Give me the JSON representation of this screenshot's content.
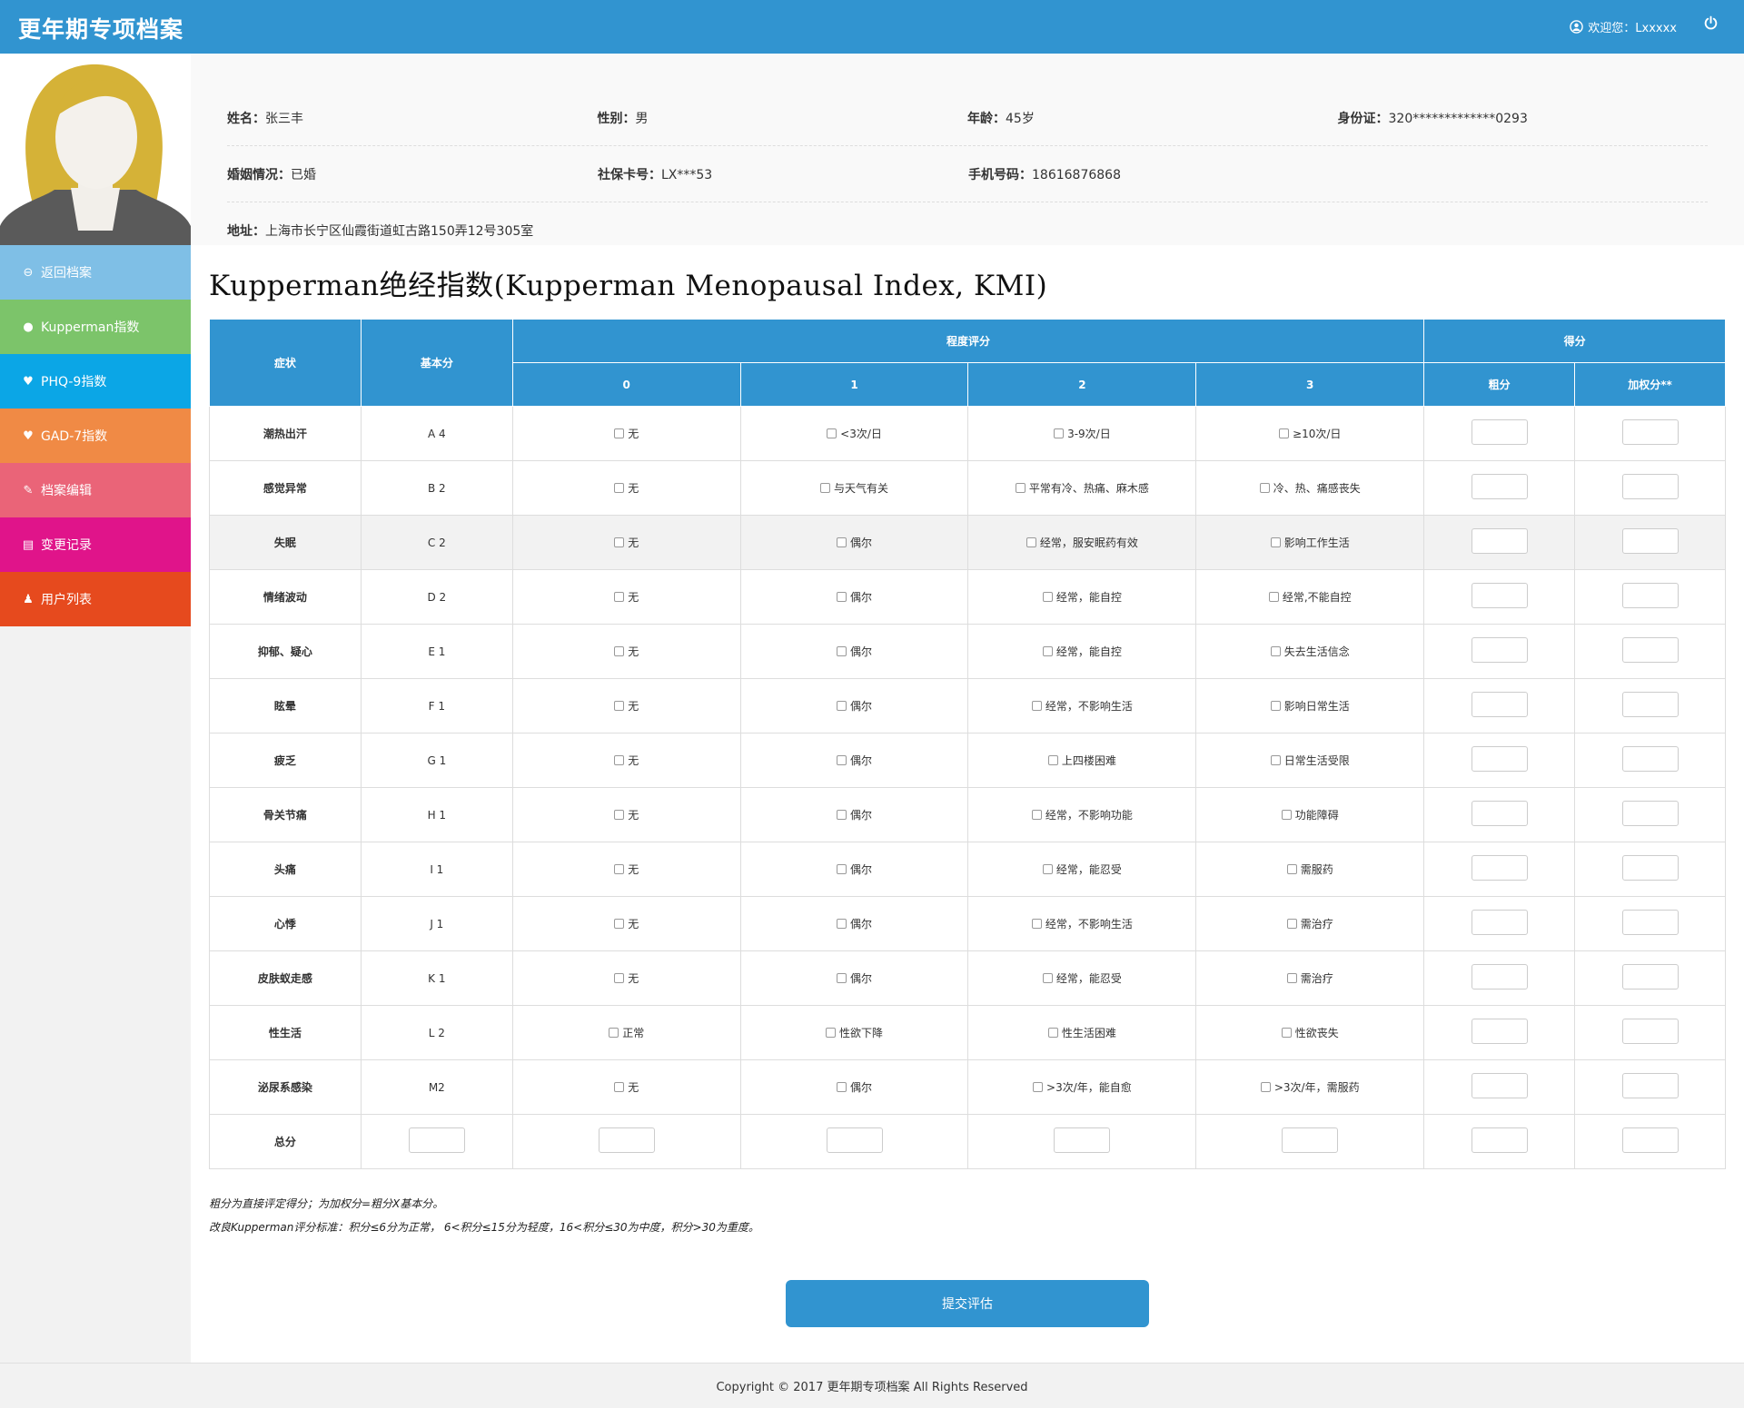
{
  "header": {
    "app_title": "更年期专项档案",
    "welcome": "欢迎您：Lxxxxx",
    "user_icon": "user-circle-icon",
    "power_icon": "power-icon"
  },
  "sidebar": {
    "items": [
      {
        "label": "返回档案",
        "icon": "arrow-circle-left-icon",
        "color": "#7fbfe6"
      },
      {
        "label": "Kupperman指数",
        "icon": "drop-icon",
        "color": "#7cc46a"
      },
      {
        "label": "PHQ-9指数",
        "icon": "heartbeat-icon",
        "color": "#0ba6e6"
      },
      {
        "label": "GAD-7指数",
        "icon": "heart-icon",
        "color": "#f08a45"
      },
      {
        "label": "档案编辑",
        "icon": "edit-icon",
        "color": "#ea6478"
      },
      {
        "label": "变更记录",
        "icon": "calendar-icon",
        "color": "#e0148a"
      },
      {
        "label": "用户列表",
        "icon": "users-icon",
        "color": "#e64a1e"
      }
    ]
  },
  "profile": {
    "name_label": "姓名：",
    "name": "张三丰",
    "gender_label": "性别：",
    "gender": "男",
    "age_label": "年龄：",
    "age": "45岁",
    "id_label": "身份证：",
    "id": "320*************0293",
    "marital_label": "婚姻情况：",
    "marital": "已婚",
    "social_label": "社保卡号：",
    "social": "LX***53",
    "phone_label": "手机号码：",
    "phone": "18616876868",
    "address_label": "地址：",
    "address": "上海市长宁区仙霞街道虹古路150弄12号305室"
  },
  "kmi": {
    "title": "Kupperman绝经指数(Kupperman Menopausal Index, KMI)",
    "headers": {
      "symptom": "症状",
      "base": "基本分",
      "degree": "程度评分",
      "score": "得分",
      "d0": "0",
      "d1": "1",
      "d2": "2",
      "d3": "3",
      "raw": "粗分",
      "weighted": "加权分**"
    },
    "rows": [
      {
        "symptom": "潮热出汗",
        "base": "A 4",
        "o0": "无",
        "o1": "<3次/日",
        "o2": "3-9次/日",
        "o3": "≥10次/日"
      },
      {
        "symptom": "感觉异常",
        "base": "B 2",
        "o0": "无",
        "o1": "与天气有关",
        "o2": "平常有冷、热痛、麻木感",
        "o3": "冷、热、痛感丧失"
      },
      {
        "symptom": "失眠",
        "base": "C 2",
        "o0": "无",
        "o1": "偶尔",
        "o2": "经常，服安眠药有效",
        "o3": "影响工作生活"
      },
      {
        "symptom": "情绪波动",
        "base": "D 2",
        "o0": "无",
        "o1": "偶尔",
        "o2": "经常，能自控",
        "o3": "经常,不能自控"
      },
      {
        "symptom": "抑郁、疑心",
        "base": "E 1",
        "o0": "无",
        "o1": "偶尔",
        "o2": "经常，能自控",
        "o3": "失去生活信念"
      },
      {
        "symptom": "眩晕",
        "base": "F 1",
        "o0": "无",
        "o1": "偶尔",
        "o2": "经常，不影响生活",
        "o3": "影响日常生活"
      },
      {
        "symptom": "疲乏",
        "base": "G 1",
        "o0": "无",
        "o1": "偶尔",
        "o2": "上四楼困难",
        "o3": "日常生活受限"
      },
      {
        "symptom": "骨关节痛",
        "base": "H 1",
        "o0": "无",
        "o1": "偶尔",
        "o2": "经常，不影响功能",
        "o3": "功能障碍"
      },
      {
        "symptom": "头痛",
        "base": "I 1",
        "o0": "无",
        "o1": "偶尔",
        "o2": "经常，能忍受",
        "o3": "需服药"
      },
      {
        "symptom": "心悸",
        "base": "J 1",
        "o0": "无",
        "o1": "偶尔",
        "o2": "经常，不影响生活",
        "o3": "需治疗"
      },
      {
        "symptom": "皮肤蚁走感",
        "base": "K 1",
        "o0": "无",
        "o1": "偶尔",
        "o2": "经常，能忍受",
        "o3": "需治疗"
      },
      {
        "symptom": "性生活",
        "base": "L 2",
        "o0": "正常",
        "o1": "性欲下降",
        "o2": "性生活困难",
        "o3": "性欲丧失"
      },
      {
        "symptom": "泌尿系感染",
        "base": "M2",
        "o0": "无",
        "o1": "偶尔",
        "o2": ">3次/年，能自愈",
        "o3": ">3次/年，需服药"
      }
    ],
    "total_label": "总分",
    "note1": "粗分为直接评定得分；为加权分=粗分X基本分。",
    "note2": "改良Kupperman评分标准：积分≤6分为正常， 6<积分≤15分为轻度，16<积分≤30为中度，积分>30为重度。",
    "submit": "提交评估"
  },
  "footer": {
    "copyright": "Copyright © 2017 更年期专项档案 All Rights Reserved"
  }
}
